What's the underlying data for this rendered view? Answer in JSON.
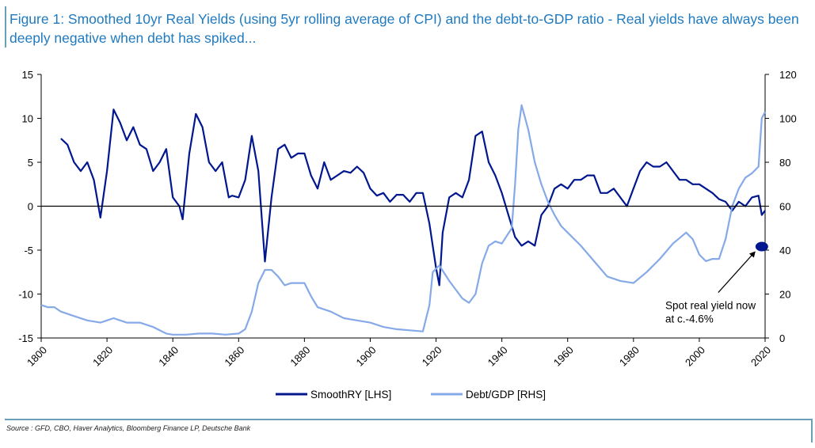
{
  "chart_data": {
    "type": "line",
    "title": "Figure 1: Smoothed 10yr Real Yields (using 5yr rolling average of CPI) and the debt-to-GDP ratio - Real yields have always been deeply negative when debt has spiked...",
    "source": "Source : GFD, CBO, Haver Analytics, Bloomberg Finance LP, Deutsche Bank",
    "xlim": [
      1800,
      2020
    ],
    "xticks": [
      1800,
      1820,
      1840,
      1860,
      1880,
      1900,
      1920,
      1940,
      1960,
      1980,
      2000,
      2020
    ],
    "ylim": [
      -15,
      15
    ],
    "yticks": [
      -15,
      -10,
      -5,
      0,
      5,
      10,
      15
    ],
    "y2lim": [
      0,
      120
    ],
    "y2ticks": [
      0,
      20,
      40,
      60,
      80,
      100,
      120
    ],
    "series": [
      {
        "name": "SmoothRY [LHS]",
        "color": "#00178f",
        "x": [
          1806,
          1808,
          1810,
          1812,
          1814,
          1816,
          1818,
          1820,
          1822,
          1824,
          1826,
          1828,
          1830,
          1832,
          1834,
          1836,
          1838,
          1840,
          1842,
          1843,
          1845,
          1847,
          1849,
          1851,
          1853,
          1855,
          1857,
          1858,
          1860,
          1862,
          1864,
          1866,
          1868,
          1870,
          1872,
          1874,
          1876,
          1878,
          1880,
          1882,
          1884,
          1886,
          1888,
          1890,
          1892,
          1894,
          1896,
          1898,
          1900,
          1902,
          1904,
          1906,
          1908,
          1910,
          1912,
          1914,
          1916,
          1918,
          1920,
          1921,
          1922,
          1924,
          1926,
          1928,
          1930,
          1932,
          1934,
          1936,
          1938,
          1940,
          1942,
          1944,
          1946,
          1948,
          1950,
          1952,
          1954,
          1956,
          1958,
          1960,
          1962,
          1964,
          1966,
          1968,
          1970,
          1972,
          1974,
          1976,
          1978,
          1980,
          1982,
          1984,
          1986,
          1988,
          1990,
          1992,
          1994,
          1996,
          1998,
          2000,
          2002,
          2004,
          2006,
          2008,
          2010,
          2012,
          2014,
          2016,
          2018,
          2019,
          2020
        ],
        "values": [
          7.7,
          7,
          5,
          4,
          5,
          3,
          -1.3,
          4,
          11,
          9.5,
          7.5,
          9,
          7,
          6.5,
          4,
          5,
          6.5,
          1,
          0,
          -1.5,
          6,
          10.5,
          9,
          5,
          4,
          5,
          1,
          1.2,
          1,
          3,
          8,
          4,
          -6.3,
          1,
          6.5,
          7,
          5.5,
          6,
          6,
          3.5,
          2,
          5,
          3,
          3.5,
          4,
          3.8,
          4.5,
          3.8,
          2,
          1.2,
          1.5,
          0.5,
          1.3,
          1.3,
          0.5,
          1.5,
          1.5,
          -2,
          -7,
          -9,
          -3,
          1,
          1.5,
          1,
          3,
          8,
          8.5,
          5,
          3.5,
          1.5,
          -1,
          -3.5,
          -4.5,
          -4,
          -4.5,
          -1,
          0,
          2,
          2.5,
          2,
          3,
          3,
          3.5,
          3.5,
          1.5,
          1.5,
          2,
          1,
          0,
          2,
          4,
          5,
          4.5,
          4.5,
          5,
          4,
          3,
          3,
          2.5,
          2.5,
          2,
          1.5,
          0.8,
          0.5,
          -0.5,
          0.5,
          0,
          1,
          1.2,
          -1,
          -0.5
        ]
      },
      {
        "name": "Debt/GDP [RHS]",
        "color": "#86a9e8",
        "axis": "y2",
        "x": [
          1800,
          1802,
          1804,
          1806,
          1810,
          1814,
          1818,
          1820,
          1822,
          1824,
          1826,
          1830,
          1834,
          1838,
          1840,
          1844,
          1848,
          1852,
          1856,
          1860,
          1862,
          1864,
          1866,
          1868,
          1870,
          1872,
          1874,
          1876,
          1878,
          1880,
          1882,
          1884,
          1888,
          1892,
          1896,
          1900,
          1904,
          1908,
          1912,
          1916,
          1918,
          1919,
          1921,
          1924,
          1928,
          1930,
          1932,
          1934,
          1936,
          1938,
          1940,
          1943,
          1944,
          1945,
          1946,
          1948,
          1950,
          1952,
          1954,
          1956,
          1958,
          1960,
          1964,
          1968,
          1972,
          1976,
          1980,
          1984,
          1988,
          1992,
          1996,
          1998,
          2000,
          2002,
          2004,
          2006,
          2008,
          2010,
          2012,
          2014,
          2016,
          2018,
          2019,
          2020
        ],
        "values": [
          15,
          14,
          14,
          12,
          10,
          8,
          7,
          8,
          9,
          8,
          7,
          7,
          5,
          2,
          1.5,
          1.5,
          2,
          2,
          1.5,
          2,
          4,
          12,
          25,
          31,
          31,
          28,
          24,
          25,
          25,
          25,
          19,
          14,
          12,
          9,
          8,
          7,
          5,
          4,
          3.5,
          3,
          15,
          30,
          33,
          26,
          18,
          16,
          20,
          34,
          42,
          44,
          43,
          50,
          70,
          95,
          106,
          95,
          80,
          70,
          62,
          56,
          51,
          48,
          42,
          35,
          28,
          26,
          25,
          30,
          36,
          43,
          48,
          45,
          38,
          35,
          36,
          36,
          45,
          60,
          68,
          73,
          75,
          78,
          100,
          103
        ]
      }
    ],
    "annotation": {
      "text_lines": [
        "Spot real yield now",
        "at c.-4.6%"
      ],
      "x": 2019,
      "y": -4.6
    },
    "zero_line": true
  }
}
